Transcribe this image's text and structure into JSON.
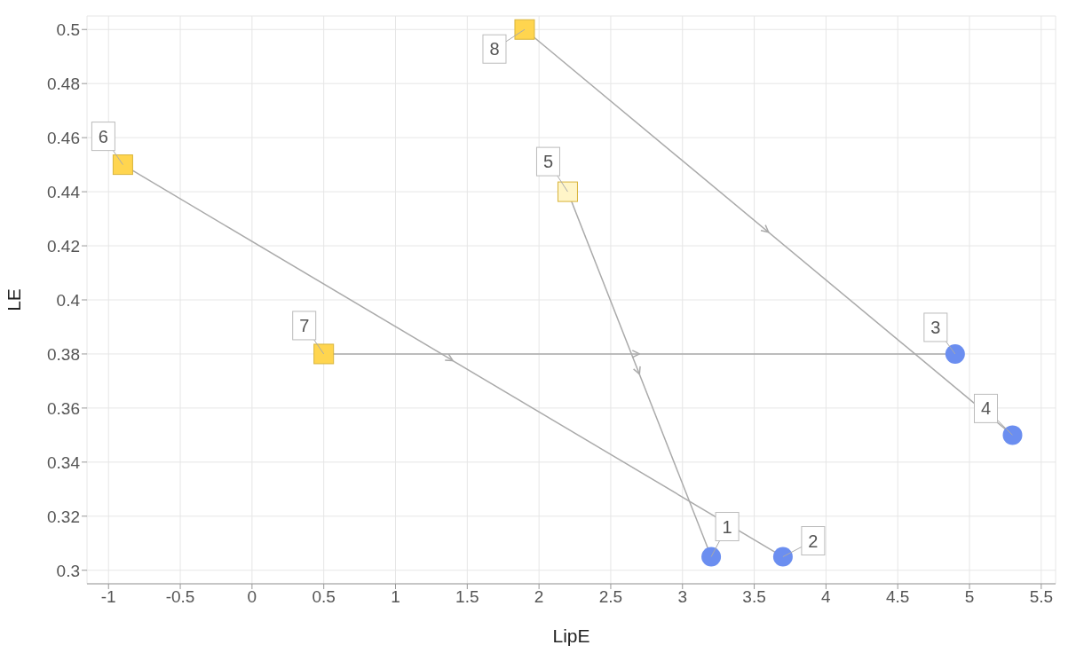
{
  "chart_data": {
    "type": "scatter",
    "xlabel": "LipE",
    "ylabel": "LE",
    "xlim": [
      -1.15,
      5.6
    ],
    "xticks": [
      -1,
      -0.5,
      0,
      0.5,
      1,
      1.5,
      2,
      2.5,
      3,
      3.5,
      4,
      4.5,
      5,
      5.5
    ],
    "ylim": [
      0.295,
      0.505
    ],
    "yticks": [
      0.3,
      0.32,
      0.34,
      0.36,
      0.38,
      0.4,
      0.42,
      0.44,
      0.46,
      0.48,
      0.5
    ],
    "grid": true,
    "series": [
      {
        "type": "line",
        "marker": "none",
        "color": "#aaaaaa",
        "x": [
          1.9,
          5.3
        ],
        "values": [
          0.5,
          0.35
        ]
      },
      {
        "type": "line",
        "marker": "none",
        "color": "#aaaaaa",
        "x": [
          -0.9,
          3.7
        ],
        "values": [
          0.45,
          0.305
        ]
      },
      {
        "type": "line",
        "marker": "none",
        "color": "#aaaaaa",
        "x": [
          2.2,
          3.2
        ],
        "values": [
          0.44,
          0.305
        ]
      },
      {
        "type": "line",
        "marker": "none",
        "color": "#aaaaaa",
        "x": [
          0.5,
          4.9
        ],
        "values": [
          0.38,
          0.38
        ]
      },
      {
        "marker": "circle",
        "color": "#6b8ef0",
        "x": [
          3.2,
          3.7,
          4.9,
          5.3
        ],
        "values": [
          0.305,
          0.305,
          0.38,
          0.35
        ]
      },
      {
        "marker": "square",
        "color": "#ffd54f",
        "colors": [
          "#fff5c8",
          "#ffd54f",
          "#ffd54f",
          "#ffd54f"
        ],
        "x": [
          2.2,
          -0.9,
          0.5,
          1.9
        ],
        "values": [
          0.44,
          0.45,
          0.38,
          0.5
        ]
      }
    ],
    "annotations": [
      {
        "text": "1",
        "x": 3.2,
        "y": 0.305
      },
      {
        "text": "2",
        "x": 3.7,
        "y": 0.305
      },
      {
        "text": "3",
        "x": 4.9,
        "y": 0.38
      },
      {
        "text": "4",
        "x": 5.3,
        "y": 0.35
      },
      {
        "text": "5",
        "x": 2.2,
        "y": 0.44
      },
      {
        "text": "6",
        "x": -0.9,
        "y": 0.45
      },
      {
        "text": "7",
        "x": 0.5,
        "y": 0.38
      },
      {
        "text": "8",
        "x": 1.9,
        "y": 0.5
      }
    ]
  }
}
